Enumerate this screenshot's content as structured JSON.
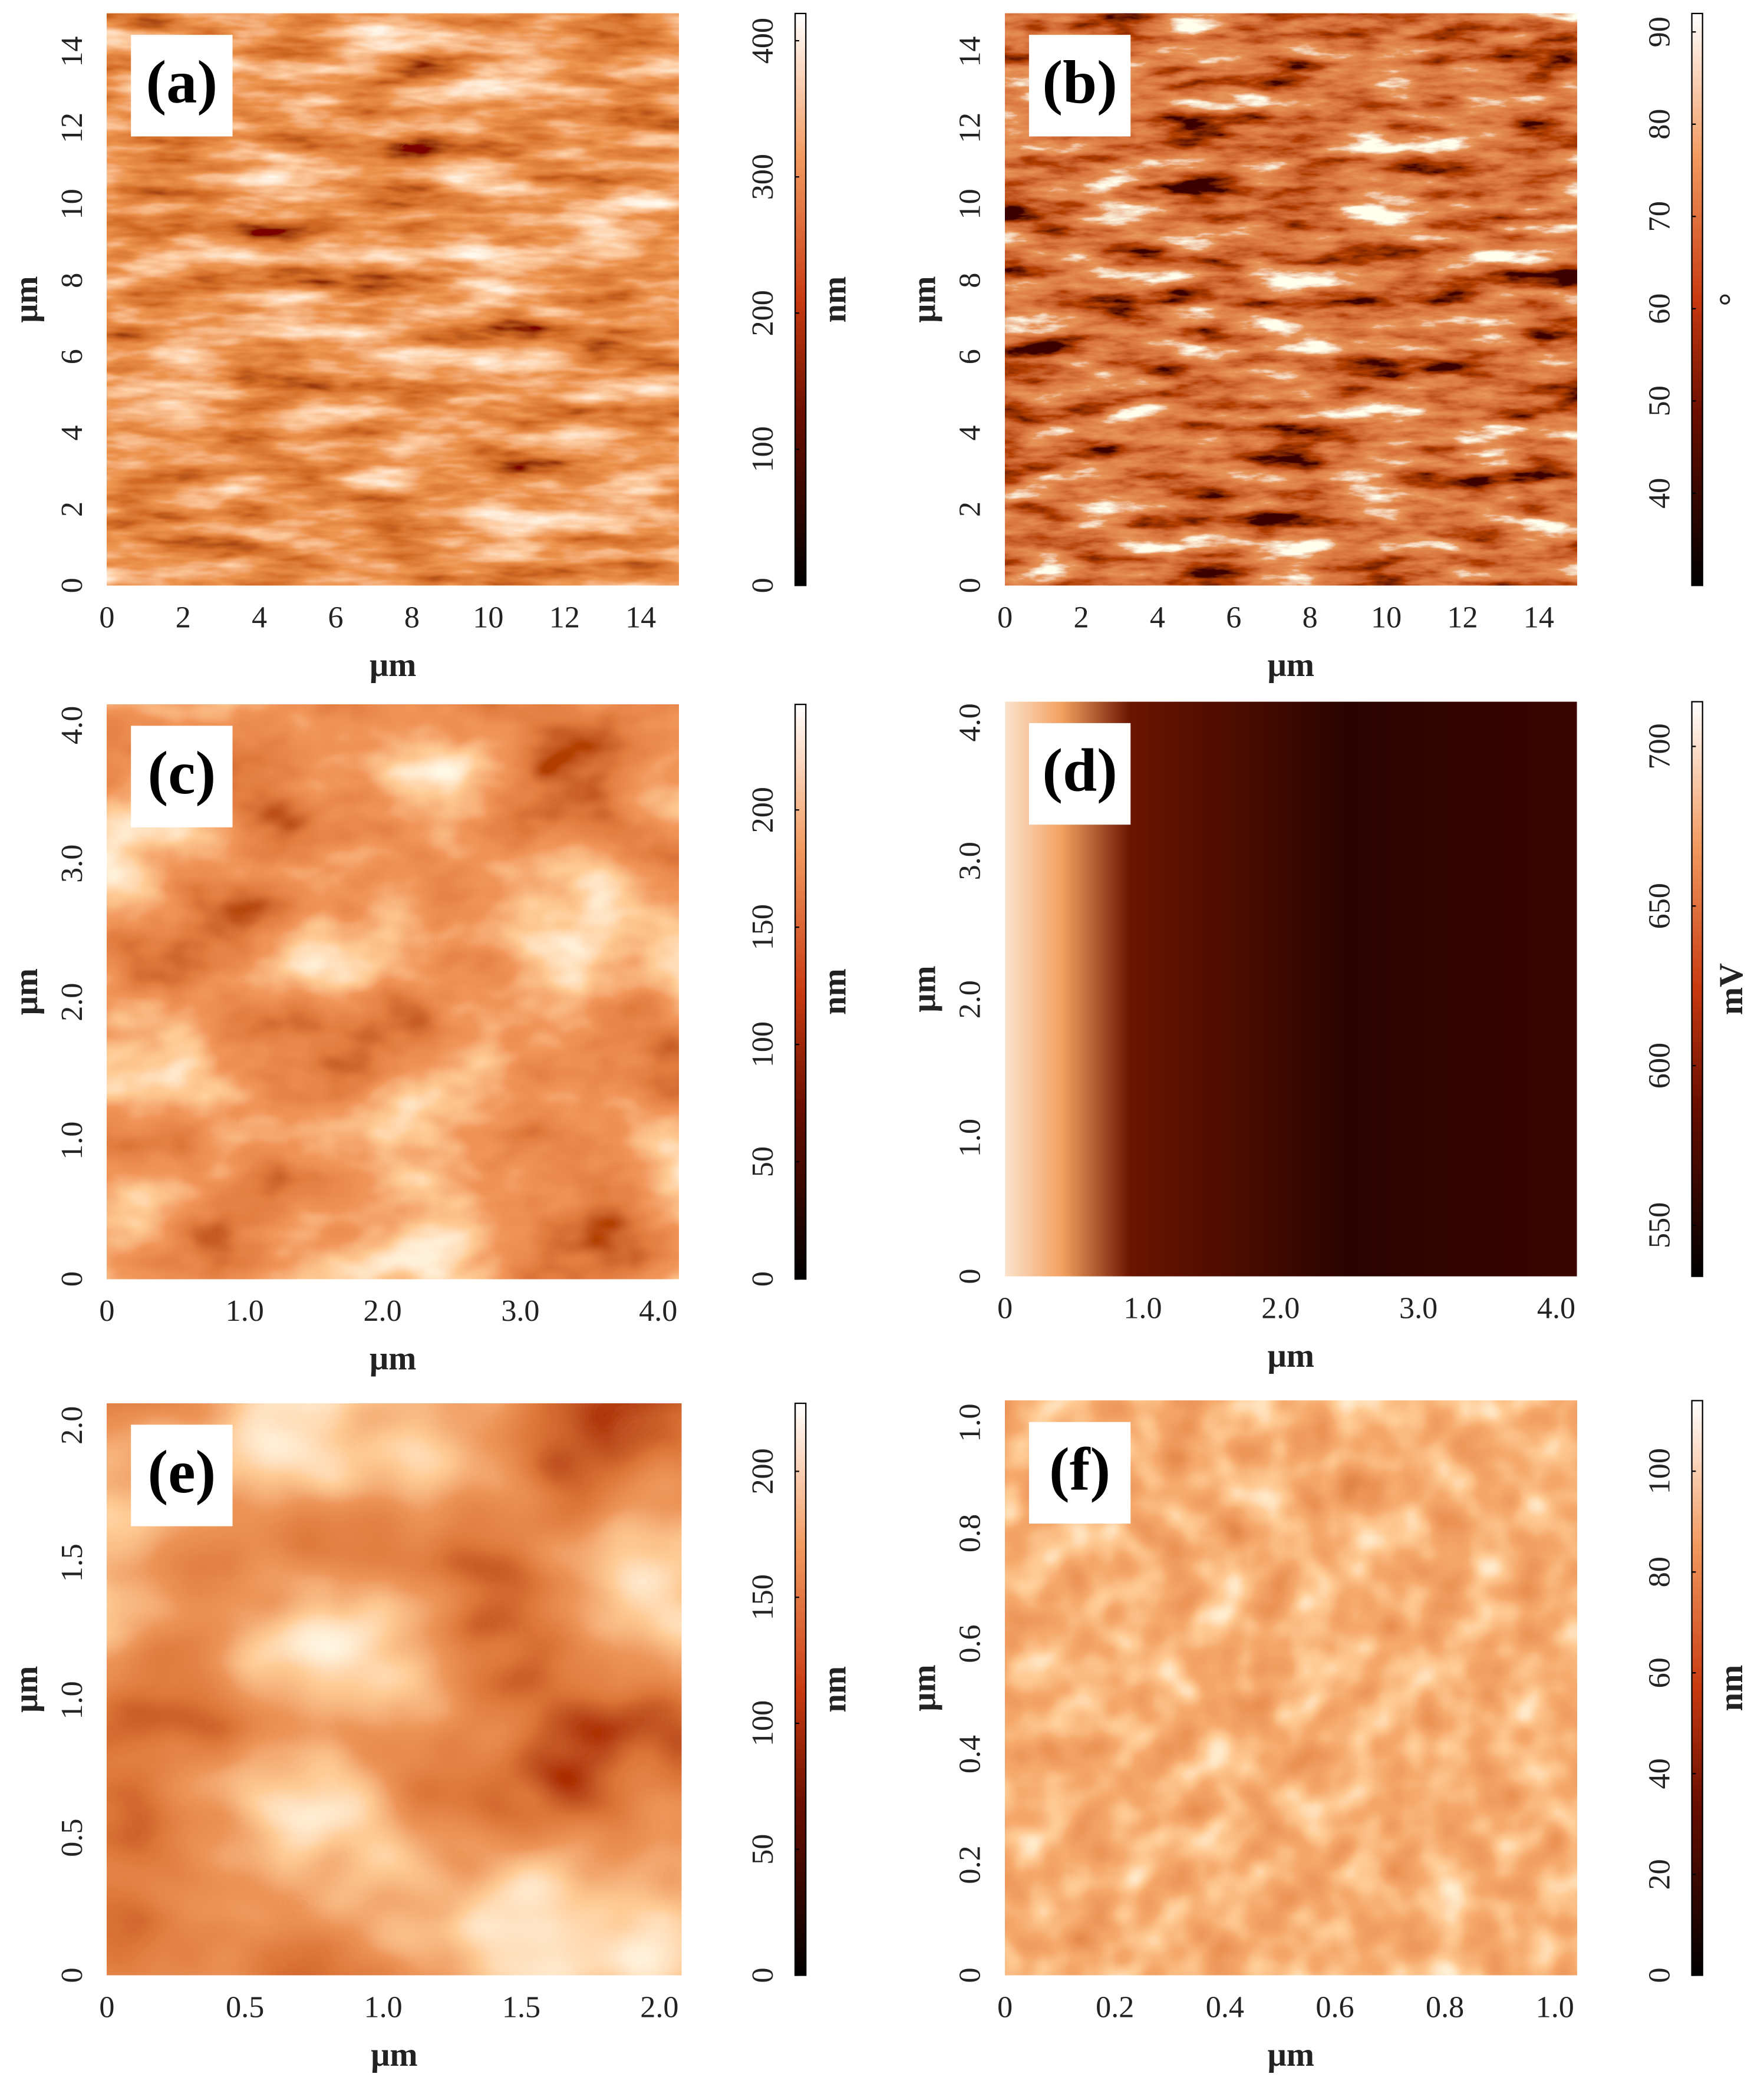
{
  "chart_data": [
    {
      "type": "image",
      "panel_label": "(a)",
      "xlabel": "μm",
      "ylabel": "μm",
      "xlim": [
        0,
        15
      ],
      "ylim": [
        0,
        15
      ],
      "xticks": [
        0,
        2,
        4,
        6,
        8,
        10,
        12,
        14
      ],
      "yticks": [
        0,
        2,
        4,
        6,
        8,
        10,
        12,
        14
      ],
      "colorbar_label": "nm",
      "clim": [
        0,
        420
      ],
      "cticks": [
        0,
        100,
        200,
        300,
        400
      ]
    },
    {
      "type": "image",
      "panel_label": "(b)",
      "xlabel": "μm",
      "ylabel": "μm",
      "xlim": [
        0,
        15
      ],
      "ylim": [
        0,
        15
      ],
      "xticks": [
        0,
        2,
        4,
        6,
        8,
        10,
        12,
        14
      ],
      "yticks": [
        0,
        2,
        4,
        6,
        8,
        10,
        12,
        14
      ],
      "colorbar_label": "°",
      "clim": [
        30,
        92
      ],
      "cticks": [
        40,
        50,
        60,
        70,
        80,
        90
      ]
    },
    {
      "type": "image",
      "panel_label": "(c)",
      "xlabel": "μm",
      "ylabel": "μm",
      "xlim": [
        0,
        4.15
      ],
      "ylim": [
        0,
        4.15
      ],
      "xticks": [
        0,
        {
          "value": 1,
          "label": "1.0"
        },
        {
          "value": 2,
          "label": "2.0"
        },
        {
          "value": 3,
          "label": "3.0"
        },
        {
          "value": 4,
          "label": "4.0"
        }
      ],
      "yticks": [
        0,
        {
          "value": 1,
          "label": "1.0"
        },
        {
          "value": 2,
          "label": "2.0"
        },
        {
          "value": 3,
          "label": "3.0"
        },
        {
          "value": 4,
          "label": "4.0"
        }
      ],
      "colorbar_label": "nm",
      "clim": [
        0,
        245
      ],
      "cticks": [
        0,
        50,
        100,
        150,
        200
      ]
    },
    {
      "type": "image",
      "panel_label": "(d)",
      "xlabel": "μm",
      "ylabel": "μm",
      "xlim": [
        0,
        4.15
      ],
      "ylim": [
        0,
        4.15
      ],
      "xticks": [
        0,
        {
          "value": 1,
          "label": "1.0"
        },
        {
          "value": 2,
          "label": "2.0"
        },
        {
          "value": 3,
          "label": "3.0"
        },
        {
          "value": 4,
          "label": "4.0"
        }
      ],
      "yticks": [
        0,
        {
          "value": 1,
          "label": "1.0"
        },
        {
          "value": 2,
          "label": "2.0"
        },
        {
          "value": 3,
          "label": "3.0"
        },
        {
          "value": 4,
          "label": "4.0"
        }
      ],
      "colorbar_label": "mV",
      "clim": [
        534,
        714
      ],
      "cticks": [
        550,
        600,
        650,
        700
      ]
    },
    {
      "type": "image",
      "panel_label": "(e)",
      "xlabel": "μm",
      "ylabel": "μm",
      "xlim": [
        0,
        2.08
      ],
      "ylim": [
        0,
        2.08
      ],
      "xticks": [
        0,
        0.5,
        {
          "value": 1,
          "label": "1.0"
        },
        1.5,
        {
          "value": 2,
          "label": "2.0"
        }
      ],
      "yticks": [
        0,
        0.5,
        {
          "value": 1,
          "label": "1.0"
        },
        1.5,
        {
          "value": 2,
          "label": "2.0"
        }
      ],
      "colorbar_label": "nm",
      "clim": [
        0,
        227
      ],
      "cticks": [
        0,
        50,
        100,
        150,
        200
      ]
    },
    {
      "type": "image",
      "panel_label": "(f)",
      "xlabel": "μm",
      "ylabel": "μm",
      "xlim": [
        0,
        1.04
      ],
      "ylim": [
        0,
        1.04
      ],
      "xticks": [
        0,
        0.2,
        0.4,
        0.6,
        0.8,
        {
          "value": 1,
          "label": "1.0"
        }
      ],
      "yticks": [
        0,
        0.2,
        0.4,
        0.6,
        0.8,
        {
          "value": 1,
          "label": "1.0"
        }
      ],
      "colorbar_label": "nm",
      "clim": [
        0,
        114
      ],
      "cticks": [
        0,
        20,
        40,
        60,
        80,
        100
      ]
    }
  ]
}
